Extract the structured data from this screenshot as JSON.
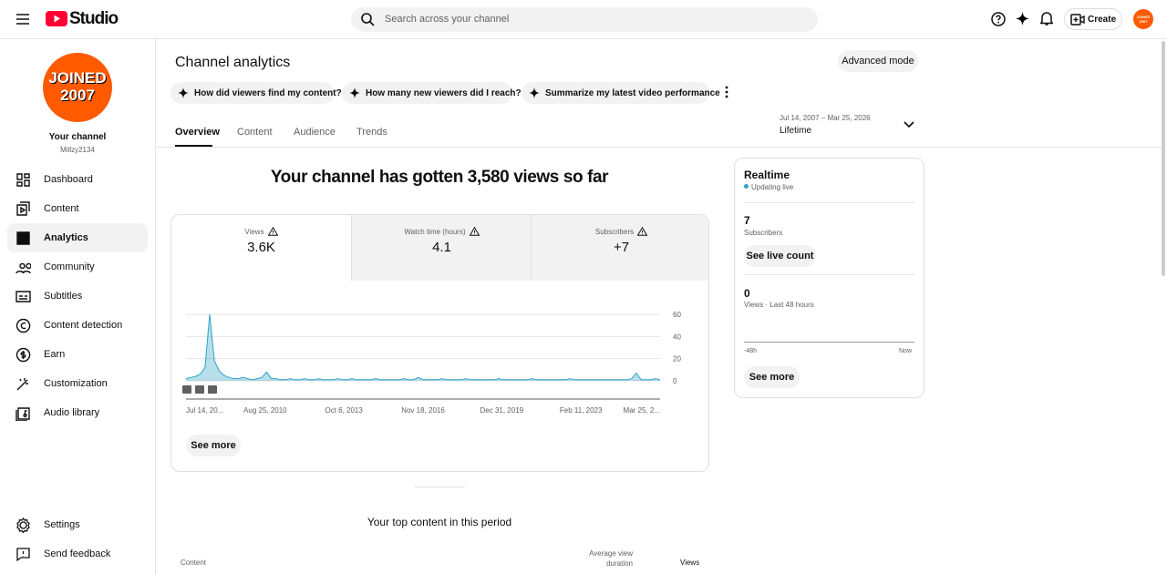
{
  "header": {
    "logo_text": "Studio",
    "search_placeholder": "Search across your channel",
    "create": "Create"
  },
  "sidebar": {
    "avatar_lines": [
      "JOINED",
      "2007"
    ],
    "channel_title": "Your channel",
    "channel_handle": "Millzy2134",
    "nav": [
      "Dashboard",
      "Content",
      "Analytics",
      "Community",
      "Subtitles",
      "Content detection",
      "Earn",
      "Customization",
      "Audio library"
    ],
    "active": "Analytics",
    "footer_nav": [
      "Settings",
      "Send feedback"
    ]
  },
  "page": {
    "title": "Channel analytics",
    "advanced_mode": "Advanced mode",
    "prompts": [
      "How did viewers find my content?",
      "How many new viewers did I reach?",
      "Summarize my latest video performance"
    ],
    "tabs": [
      "Overview",
      "Content",
      "Audience",
      "Trends"
    ],
    "date_range": {
      "range": "Jul 14, 2007 – Mar 25, 2026",
      "label": "Lifetime"
    },
    "headline": "Your channel has gotten 3,580 views so far",
    "metrics": [
      {
        "label": "Views",
        "value": "3.6K"
      },
      {
        "label": "Watch time (hours)",
        "value": "4.1"
      },
      {
        "label": "Subscribers",
        "value": "+7"
      }
    ],
    "see_more": "See more",
    "top_content": {
      "title": "Your top content in this period",
      "columns": [
        "Content",
        "Average view duration",
        "Views"
      ]
    }
  },
  "chart_data": {
    "type": "area",
    "color": "#2ea3c6",
    "values": [
      2,
      3,
      4,
      6,
      12,
      60,
      18,
      9,
      5,
      3,
      2,
      2,
      3,
      2,
      1,
      2,
      3,
      8,
      2,
      2,
      1,
      1,
      2,
      1,
      1,
      2,
      1,
      1,
      2,
      1,
      1,
      1,
      2,
      1,
      1,
      2,
      1,
      1,
      1,
      1,
      2,
      1,
      1,
      1,
      1,
      1,
      2,
      1,
      1,
      3,
      1,
      1,
      1,
      1,
      2,
      1,
      1,
      1,
      1,
      2,
      1,
      1,
      1,
      1,
      1,
      1,
      2,
      1,
      1,
      1,
      1,
      1,
      1,
      2,
      1,
      1,
      1,
      1,
      1,
      1,
      1,
      2,
      1,
      1,
      1,
      1,
      1,
      1,
      1,
      1,
      1,
      1,
      1,
      1,
      2,
      7,
      1,
      1,
      1,
      2,
      1
    ],
    "xlim": [
      0,
      100
    ],
    "xticks": [
      {
        "value": 0,
        "label": "Jul 14, 20..."
      },
      {
        "value": 16.7,
        "label": "Aug 25, 2010"
      },
      {
        "value": 33.3,
        "label": "Oct 6, 2013"
      },
      {
        "value": 50,
        "label": "Nov 18, 2016"
      },
      {
        "value": 66.6,
        "label": "Dec 31, 2019"
      },
      {
        "value": 83.3,
        "label": "Feb 11, 2023"
      },
      {
        "value": 100,
        "label": "Mar 25, 2..."
      }
    ],
    "ylim": [
      0,
      60
    ],
    "yticks": [
      0,
      20,
      40,
      60
    ],
    "grid": true
  },
  "realtime": {
    "title": "Realtime",
    "status": "Updating live",
    "subscribers": "7",
    "subscribers_label": "Subscribers",
    "live_count": "See live count",
    "views": "0",
    "views_label": "Views · Last 48 hours",
    "axis_start": "-48h",
    "axis_end": "Now",
    "see_more": "See more"
  }
}
